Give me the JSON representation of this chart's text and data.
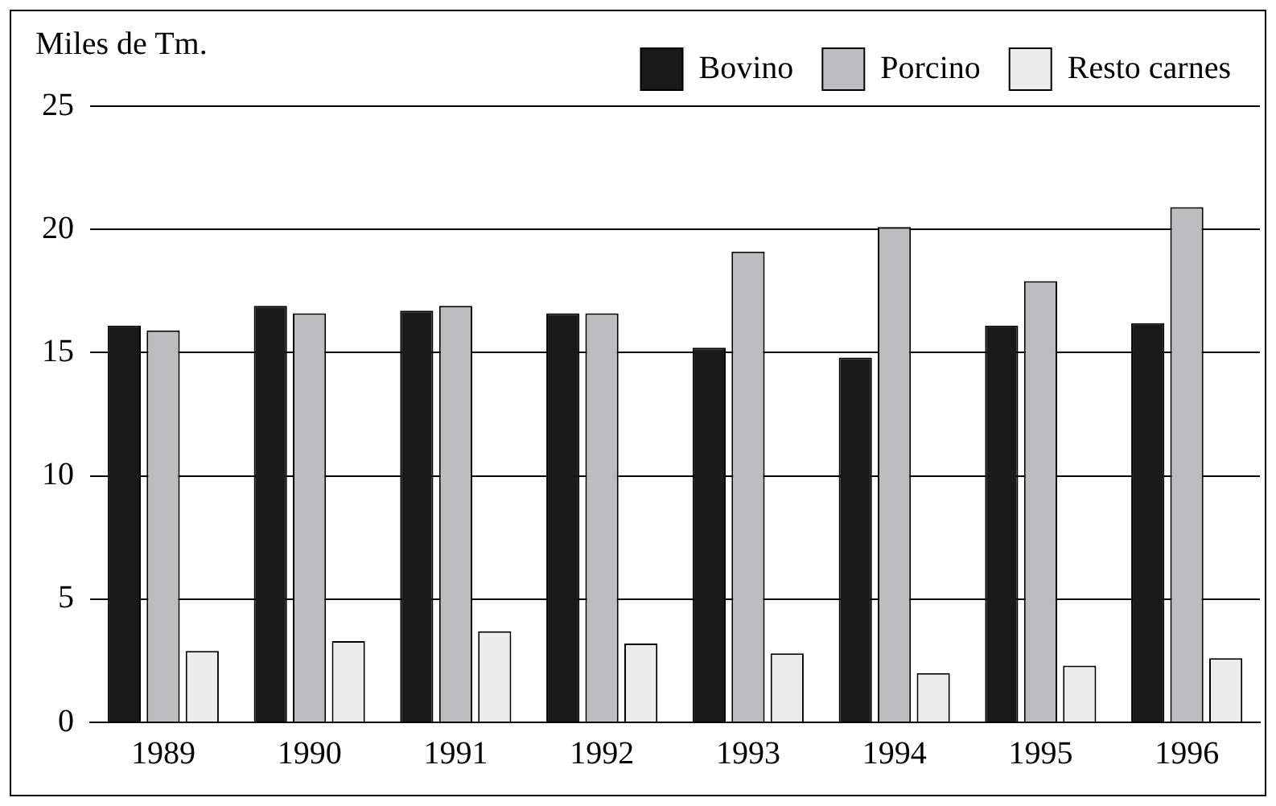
{
  "chart_data": {
    "type": "bar",
    "ylabel": "Miles de Tm.",
    "categories": [
      "1989",
      "1990",
      "1991",
      "1992",
      "1993",
      "1994",
      "1995",
      "1996"
    ],
    "series": [
      {
        "name": "Bovino",
        "color": "#1a1a1a",
        "values": [
          16.1,
          16.9,
          16.7,
          16.6,
          15.2,
          14.8,
          16.1,
          16.2
        ]
      },
      {
        "name": "Porcino",
        "color": "#bdbdc0",
        "values": [
          15.9,
          16.6,
          16.9,
          16.6,
          19.1,
          20.1,
          17.9,
          20.9
        ]
      },
      {
        "name": "Resto carnes",
        "color": "#ececec",
        "values": [
          2.9,
          3.3,
          3.7,
          3.2,
          2.8,
          2.0,
          2.3,
          2.6
        ]
      }
    ],
    "ylim": [
      0,
      25
    ],
    "yticks": [
      0,
      5,
      10,
      15,
      20,
      25
    ],
    "grid": "y",
    "legend": "top"
  }
}
